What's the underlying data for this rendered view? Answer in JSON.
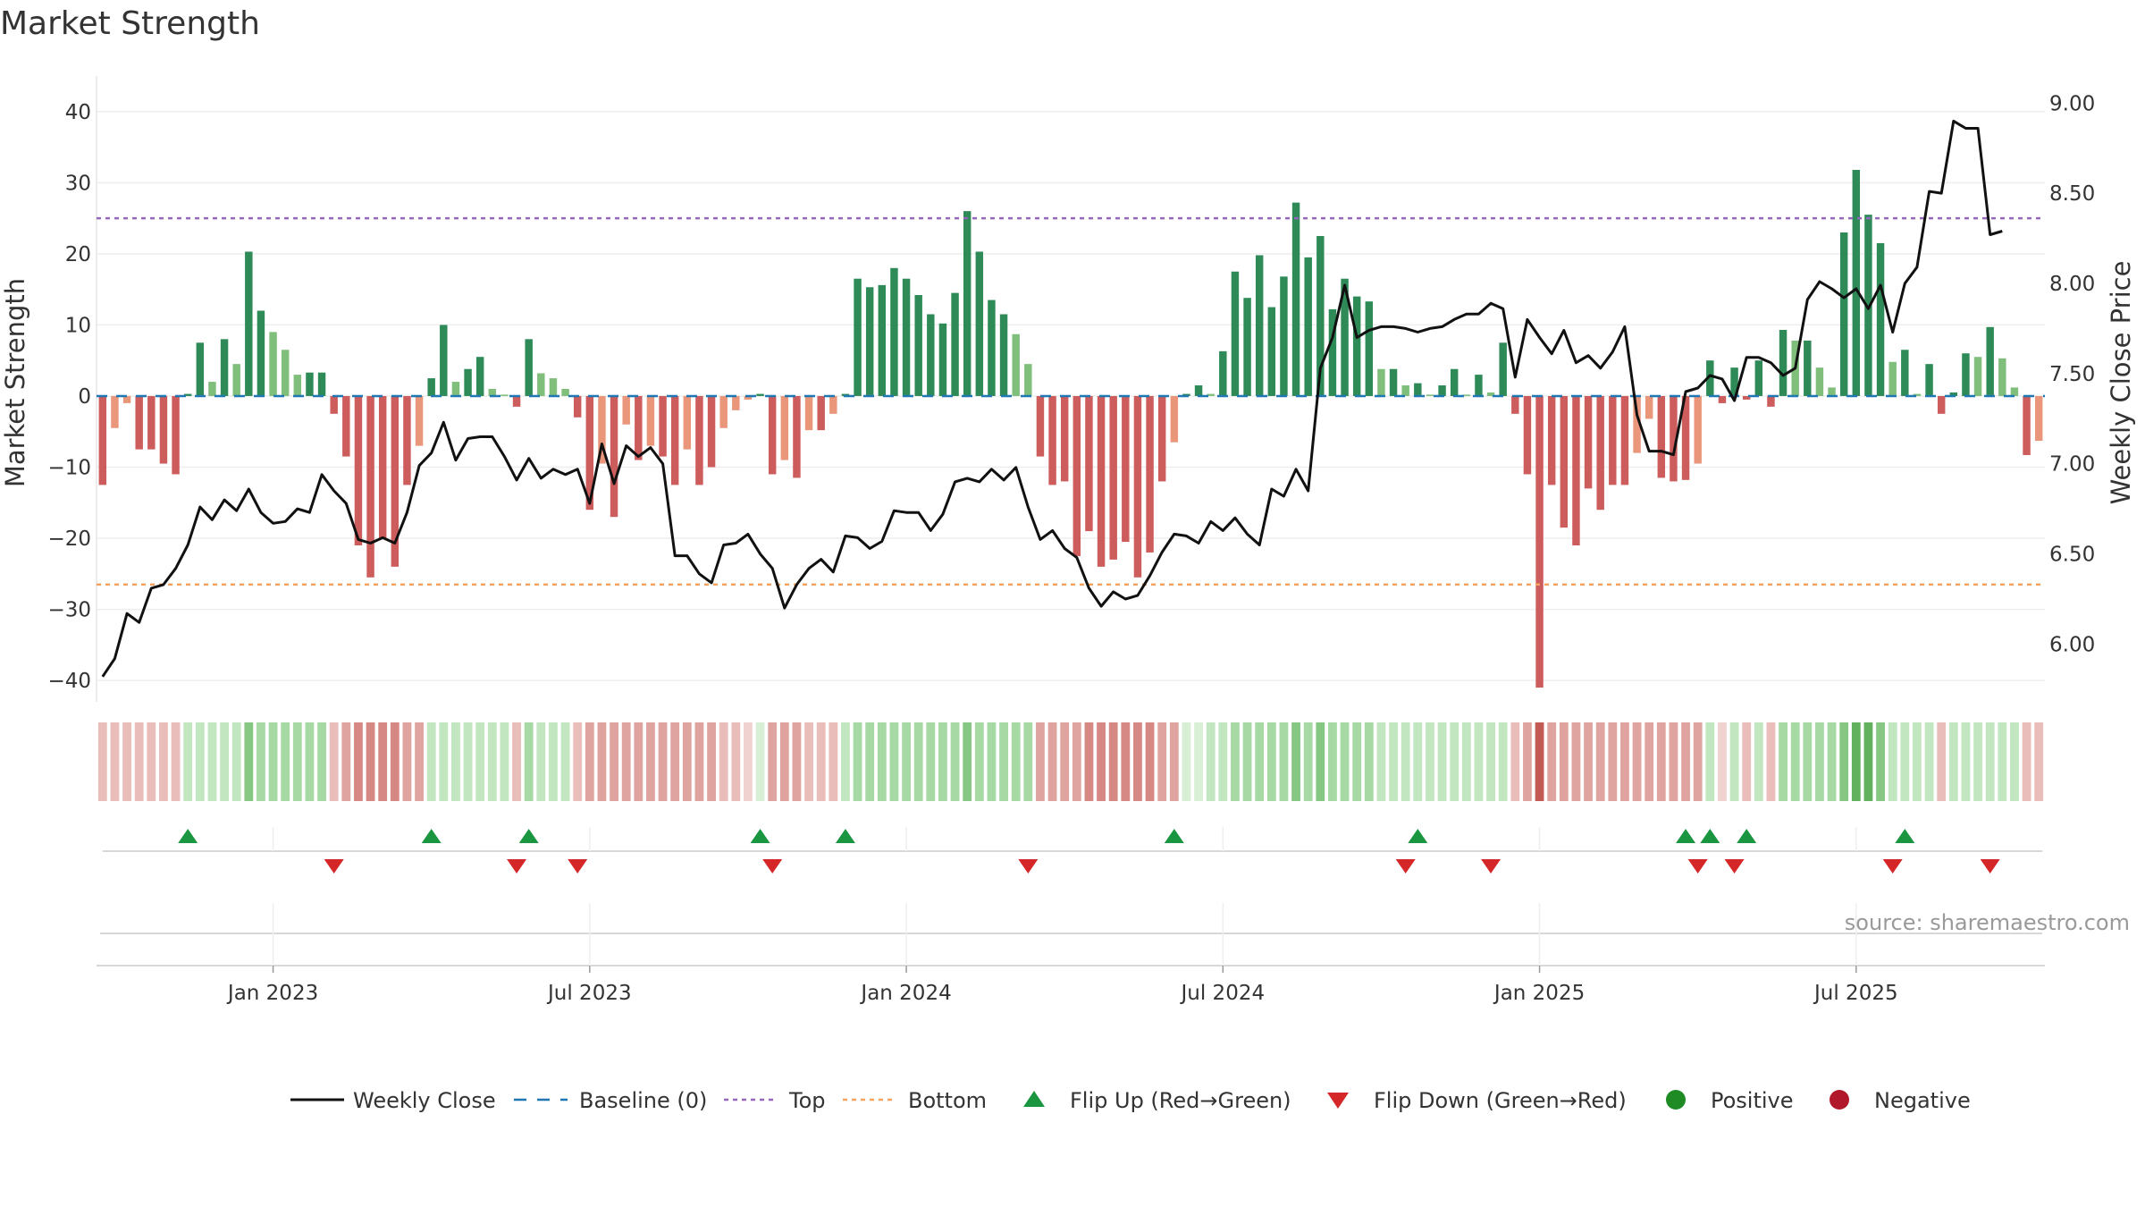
{
  "chart_data": {
    "type": "bar+line",
    "title": "Market Strength",
    "ylabel_left": "Market Strength",
    "ylabel_right": "Weekly Close Price",
    "left_ylim": [
      -43,
      45
    ],
    "right_ylim": [
      5.68,
      9.15
    ],
    "left_ticks": [
      40,
      30,
      20,
      10,
      0,
      -10,
      -20,
      -30,
      -40
    ],
    "left_tick_labels": [
      "40",
      "30",
      "20",
      "10",
      "0",
      "−10",
      "−20",
      "−30",
      "−40"
    ],
    "right_ticks": [
      9.0,
      8.5,
      8.0,
      7.5,
      7.0,
      6.5,
      6.0
    ],
    "right_tick_labels": [
      "9.00",
      "8.50",
      "8.00",
      "7.50",
      "7.00",
      "6.50",
      "6.00"
    ],
    "top_level": 25,
    "bottom_level": -26.5,
    "x_ticks": [
      {
        "week": 14,
        "label": "Jan 2023"
      },
      {
        "week": 40,
        "label": "Jul 2023"
      },
      {
        "week": 66,
        "label": "Jan 2024"
      },
      {
        "week": 92,
        "label": "Jul 2024"
      },
      {
        "week": 118,
        "label": "Jan 2025"
      },
      {
        "week": 144,
        "label": "Jul 2025"
      }
    ],
    "strength": [
      -12.5,
      -4.5,
      -1,
      -7.5,
      -7.5,
      -9.5,
      -11,
      0.3,
      7.5,
      2,
      8,
      4.5,
      20.3,
      12,
      9,
      6.5,
      3,
      3.3,
      3.3,
      -2.5,
      -8.5,
      -21,
      -25.5,
      -20,
      -24,
      -12.5,
      -7,
      2.5,
      10,
      2,
      3.8,
      5.5,
      1,
      0.2,
      -1.5,
      8,
      3.2,
      2.5,
      1,
      -3,
      -16,
      -9.5,
      -17,
      -4,
      -9,
      -7,
      -8.5,
      -12.5,
      -7.5,
      -12.5,
      -10,
      -4.5,
      -2,
      -0.5,
      0.3,
      -11,
      -9,
      -11.5,
      -4.8,
      -4.8,
      -2.5,
      0.3,
      16.5,
      15.3,
      15.6,
      18,
      16.5,
      14.2,
      11.5,
      10.2,
      14.5,
      26,
      20.3,
      13.5,
      11.5,
      8.7,
      4.5,
      -8.5,
      -12.5,
      -12,
      -22.5,
      -19,
      -24,
      -23,
      -20.5,
      -25.5,
      -22,
      -12,
      -6.5,
      0.3,
      1.5,
      0.3,
      6.3,
      17.5,
      13.8,
      19.8,
      12.5,
      16.8,
      27.2,
      19.5,
      22.5,
      12.2,
      16.5,
      14,
      13.3,
      3.8,
      3.8,
      1.5,
      1.8,
      0.2,
      1.5,
      3.8,
      0.2,
      3,
      0.5,
      7.5,
      -2.5,
      -11,
      -41,
      -12.5,
      -18.5,
      -21,
      -13,
      -16,
      -12.5,
      -12.5,
      -8,
      -3.2,
      -11.5,
      -12,
      -11.8,
      -9.5,
      5,
      -1,
      4,
      -0.5,
      5,
      -1.5,
      9.3,
      7.8,
      7.8,
      4,
      1.2,
      23,
      31.8,
      25.5,
      21.5,
      4.8,
      6.5,
      0.3,
      4.5,
      -2.5,
      0.5,
      6,
      5.5,
      9.7,
      5.3,
      1.2,
      -8.3,
      -6.3
    ],
    "close": [
      5.82,
      5.92,
      6.17,
      6.12,
      6.31,
      6.33,
      6.42,
      6.55,
      6.76,
      6.69,
      6.8,
      6.74,
      6.86,
      6.73,
      6.67,
      6.68,
      6.75,
      6.73,
      6.94,
      6.85,
      6.78,
      6.58,
      6.56,
      6.59,
      6.56,
      6.73,
      6.99,
      7.06,
      7.23,
      7.02,
      7.14,
      7.15,
      7.15,
      7.04,
      6.91,
      7.03,
      6.92,
      6.97,
      6.94,
      6.97,
      6.78,
      7.11,
      6.89,
      7.1,
      7.04,
      7.09,
      7.0,
      6.49,
      6.49,
      6.39,
      6.34,
      6.55,
      6.56,
      6.61,
      6.5,
      6.42,
      6.2,
      6.33,
      6.42,
      6.47,
      6.4,
      6.6,
      6.59,
      6.53,
      6.57,
      6.74,
      6.73,
      6.73,
      6.63,
      6.72,
      6.9,
      6.92,
      6.9,
      6.97,
      6.91,
      6.98,
      6.76,
      6.58,
      6.63,
      6.53,
      6.48,
      6.31,
      6.21,
      6.29,
      6.25,
      6.27,
      6.38,
      6.51,
      6.61,
      6.6,
      6.56,
      6.68,
      6.63,
      6.7,
      6.61,
      6.55,
      6.86,
      6.82,
      6.97,
      6.85,
      7.53,
      7.7,
      7.99,
      7.7,
      7.74,
      7.76,
      7.76,
      7.75,
      7.73,
      7.75,
      7.76,
      7.8,
      7.83,
      7.83,
      7.89,
      7.86,
      7.48,
      7.8,
      7.7,
      7.61,
      7.74,
      7.56,
      7.6,
      7.53,
      7.62,
      7.76,
      7.27,
      7.07,
      7.07,
      7.05,
      7.4,
      7.42,
      7.49,
      7.47,
      7.35,
      7.59,
      7.59,
      7.56,
      7.49,
      7.53,
      7.91,
      8.01,
      7.97,
      7.92,
      7.97,
      7.86,
      7.99,
      7.73,
      8.0,
      8.09,
      8.51,
      8.5,
      8.9,
      8.86,
      8.86,
      8.27,
      8.29
    ],
    "heat": [
      2,
      2,
      2,
      2,
      2,
      2,
      2,
      2,
      2,
      2,
      2,
      2,
      4,
      3,
      3,
      3,
      3,
      3,
      3,
      2,
      3,
      4,
      4,
      4,
      4,
      3,
      3,
      2,
      2,
      2,
      2,
      2,
      2,
      2,
      2,
      3,
      2,
      2,
      2,
      2,
      3,
      3,
      3,
      3,
      3,
      3,
      3,
      3,
      3,
      3,
      3,
      2,
      2,
      1,
      1,
      3,
      3,
      3,
      2,
      2,
      2,
      2,
      3,
      3,
      3,
      3,
      3,
      3,
      3,
      3,
      3,
      4,
      3,
      3,
      3,
      3,
      3,
      3,
      3,
      3,
      3,
      4,
      4,
      4,
      4,
      4,
      4,
      3,
      3,
      1,
      1,
      2,
      2,
      3,
      3,
      3,
      3,
      3,
      4,
      3,
      4,
      3,
      3,
      3,
      3,
      2,
      2,
      2,
      2,
      2,
      2,
      2,
      2,
      2,
      2,
      2,
      2,
      3,
      5,
      3,
      3,
      3,
      3,
      3,
      3,
      3,
      3,
      3,
      3,
      3,
      3,
      3,
      2,
      1,
      2,
      2,
      2,
      2,
      3,
      3,
      3,
      3,
      3,
      4,
      5,
      5,
      4,
      2,
      2,
      2,
      2,
      2,
      2,
      2,
      2,
      2,
      2,
      2,
      2,
      2
    ],
    "flip_up_weeks": [
      7,
      27,
      35,
      54,
      61,
      88,
      108,
      130,
      132,
      135,
      148
    ],
    "flip_down_weeks": [
      19,
      34,
      39,
      55,
      76,
      107,
      114,
      131,
      134,
      147,
      155
    ],
    "legend": [
      {
        "key": "close",
        "label": "Weekly Close"
      },
      {
        "key": "baseline",
        "label": "Baseline (0)"
      },
      {
        "key": "top",
        "label": "Top"
      },
      {
        "key": "bottom",
        "label": "Bottom"
      },
      {
        "key": "flip-up",
        "label": "Flip Up (Red→Green)"
      },
      {
        "key": "flip-down",
        "label": "Flip Down (Green→Red)"
      },
      {
        "key": "positive",
        "label": "Positive"
      },
      {
        "key": "negative",
        "label": "Negative"
      }
    ],
    "source": "source: sharemaestro.com"
  },
  "colors": {
    "pos_strong": "#2e8b57",
    "pos_light": "#7fbf7b",
    "neg_strong": "#cd5c5c",
    "neg_light": "#e9967a",
    "close_line": "#111111",
    "baseline": "#1f77b4",
    "top": "#9467bd",
    "bottom": "#f4a460",
    "flip_up": "#1a9641",
    "flip_down": "#d62728",
    "positive_dot": "#1f8b24",
    "negative_dot": "#b2182b"
  }
}
